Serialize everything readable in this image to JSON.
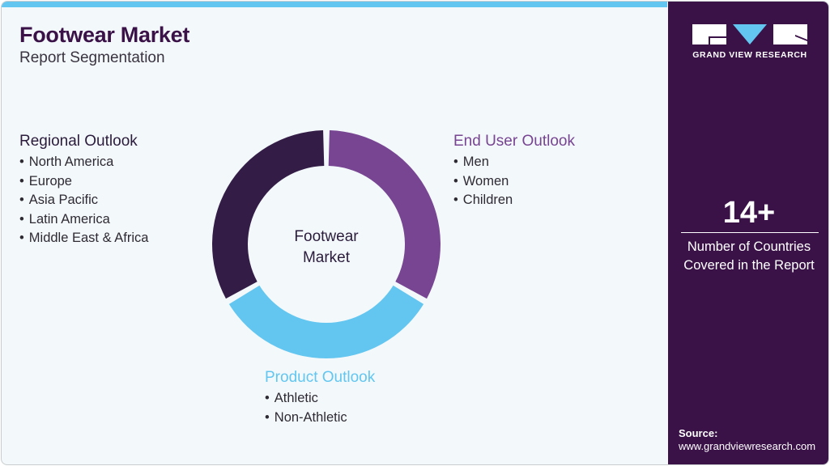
{
  "header": {
    "title": "Footwear Market",
    "subtitle": "Report Segmentation"
  },
  "colors": {
    "brand_dark": "#3a1248",
    "light_blue": "#62c6f0",
    "purple": "#774592",
    "dark_segment": "#331d47",
    "background": "#f3f8fb"
  },
  "donut": {
    "center_label_line1": "Footwear",
    "center_label_line2": "Market",
    "segments": [
      {
        "name": "End User Outlook",
        "share": 1,
        "color": "#774592"
      },
      {
        "name": "Product Outlook",
        "share": 1,
        "color": "#62c6f0"
      },
      {
        "name": "Regional Outlook",
        "share": 1,
        "color": "#331d47"
      }
    ]
  },
  "segments": {
    "regional": {
      "heading": "Regional Outlook",
      "color": "#2b1c3c",
      "items": [
        "North America",
        "Europe",
        "Asia Pacific",
        "Latin America",
        "Middle East & Africa"
      ]
    },
    "end_user": {
      "heading": "End User Outlook",
      "color": "#774592",
      "items": [
        "Men",
        "Women",
        "Children"
      ]
    },
    "product": {
      "heading": "Product Outlook",
      "color": "#62c6f0",
      "items": [
        "Athletic",
        "Non-Athletic"
      ]
    }
  },
  "sidebar": {
    "logo_text": "GRAND VIEW RESEARCH",
    "stat_value": "14+",
    "stat_line1": "Number of Countries",
    "stat_line2": "Covered in the Report",
    "source_label": "Source:",
    "source_url": "www.grandviewresearch.com"
  }
}
